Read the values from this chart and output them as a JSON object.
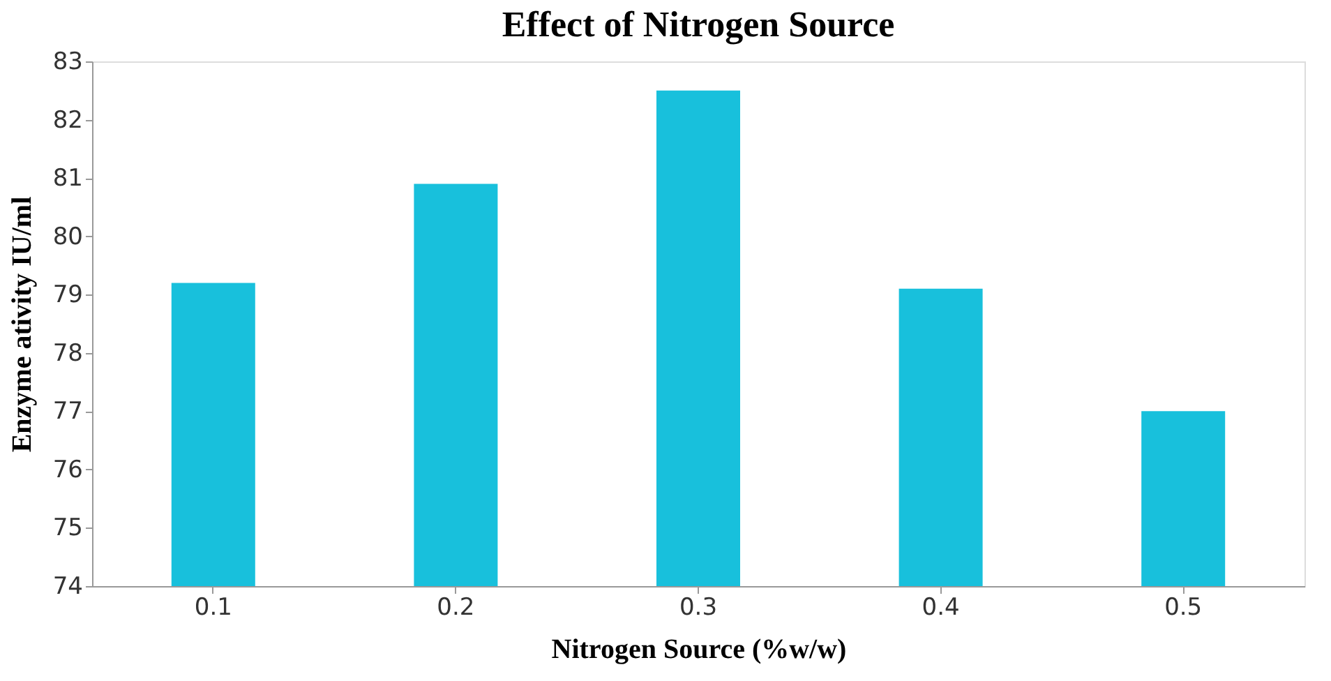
{
  "chart_data": {
    "type": "bar",
    "title": "Effect of Nitrogen Source",
    "xlabel": "Nitrogen Source (%w/w)",
    "ylabel": "Enzyme ativity IU/ml",
    "categories": [
      "0.1",
      "0.2",
      "0.3",
      "0.4",
      "0.5"
    ],
    "values": [
      79.2,
      80.9,
      82.5,
      79.1,
      77.0
    ],
    "color": "#18c0dc",
    "ylim": [
      74,
      83
    ],
    "yticks": [
      74,
      75,
      76,
      77,
      78,
      79,
      80,
      81,
      82,
      83
    ],
    "grid": false
  }
}
